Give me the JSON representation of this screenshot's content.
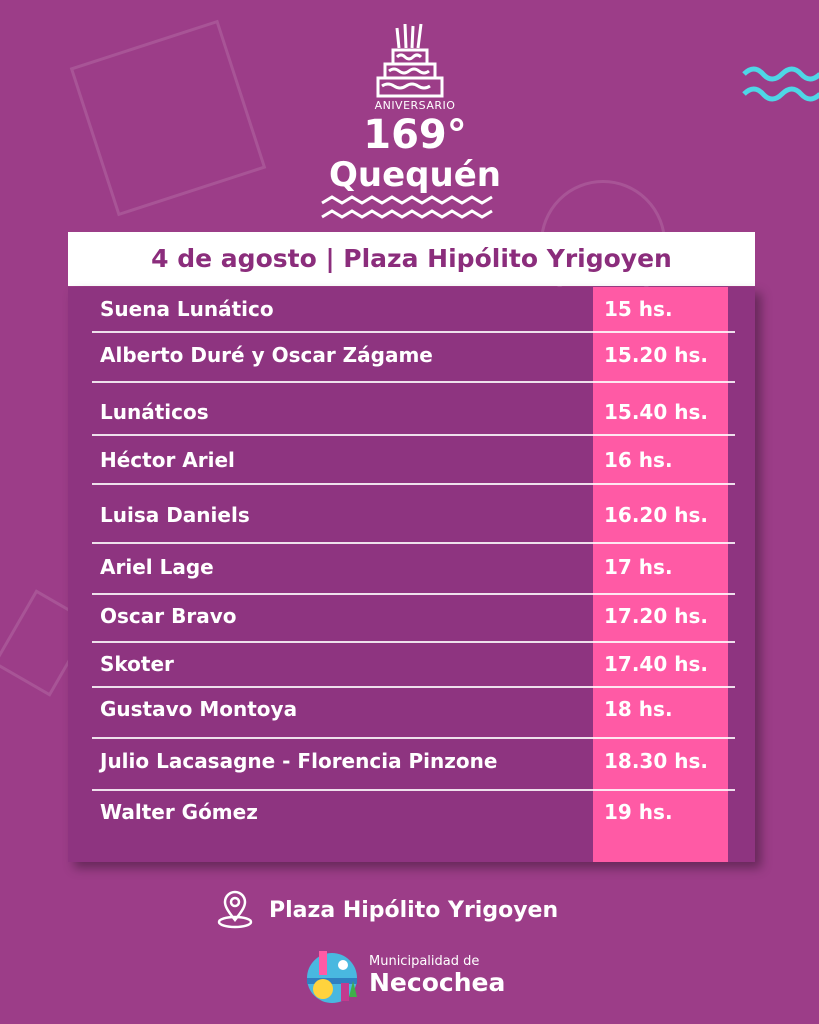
{
  "logo": {
    "aniversario": "ANIVERSARIO",
    "number": "169°",
    "town": "Quequén"
  },
  "title": "4 de agosto | Plaza Hipólito Yrigoyen",
  "schedule": [
    {
      "artist": "Suena Lunático",
      "time": "15 hs."
    },
    {
      "artist": "Alberto Duré y Oscar Zágame",
      "time": "15.20 hs."
    },
    {
      "artist": "Lunáticos",
      "time": "15.40 hs."
    },
    {
      "artist": "Héctor Ariel",
      "time": "16 hs."
    },
    {
      "artist": "Luisa Daniels",
      "time": "16.20 hs."
    },
    {
      "artist": "Ariel Lage",
      "time": "17 hs."
    },
    {
      "artist": "Oscar Bravo",
      "time": "17.20 hs."
    },
    {
      "artist": "Skoter",
      "time": "17.40 hs."
    },
    {
      "artist": "Gustavo Montoya",
      "time": "18 hs."
    },
    {
      "artist": "Julio Lacasagne - Florencia Pinzone",
      "time": "18.30 hs."
    },
    {
      "artist": "Walter Gómez",
      "time": "19 hs."
    }
  ],
  "location": {
    "icon": "map-pin-icon",
    "label": "Plaza Hipólito Yrigoyen"
  },
  "footer": {
    "line1": "Municipalidad de",
    "line2": "Necochea"
  },
  "colors": {
    "background": "#9c3d88",
    "table": "#8e3480",
    "accent": "#ff5aa5",
    "title_text": "#8b2d7c"
  }
}
